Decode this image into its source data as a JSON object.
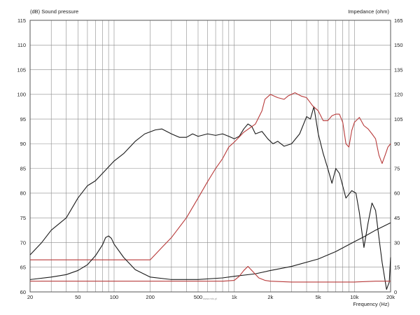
{
  "chart_data": {
    "type": "line",
    "left_axis_title": "(dB)  Sound pressure",
    "right_axis_title": "Impedance  (ohm)",
    "xlabel": "Frequency  (Hz)",
    "x_scale": "log",
    "xlim": [
      20,
      20000
    ],
    "ylim_left": [
      60,
      115
    ],
    "ylim_right": [
      0,
      165
    ],
    "grid": true,
    "watermark": "www.mis.pl",
    "x_ticks": [
      {
        "value": 20,
        "label": "20"
      },
      {
        "value": 50,
        "label": "50"
      },
      {
        "value": 100,
        "label": "100"
      },
      {
        "value": 200,
        "label": "200"
      },
      {
        "value": 500,
        "label": "500"
      },
      {
        "value": 1000,
        "label": "1k"
      },
      {
        "value": 2000,
        "label": "2k"
      },
      {
        "value": 5000,
        "label": "5k"
      },
      {
        "value": 10000,
        "label": "10k"
      },
      {
        "value": 20000,
        "label": "20k"
      }
    ],
    "y_left_ticks": [
      "60",
      "65",
      "70",
      "75",
      "80",
      "85",
      "90",
      "95",
      "100",
      "105",
      "110",
      "115"
    ],
    "y_right_ticks": [
      "0",
      "15",
      "30",
      "45",
      "60",
      "75",
      "90",
      "105",
      "120",
      "135",
      "150",
      "165"
    ],
    "series": [
      {
        "axis": "left",
        "color": "#1a1a1a",
        "points": [
          [
            20,
            67.5
          ],
          [
            25,
            70
          ],
          [
            30,
            72.5
          ],
          [
            40,
            75
          ],
          [
            50,
            79
          ],
          [
            60,
            81.5
          ],
          [
            70,
            82.5
          ],
          [
            80,
            84
          ],
          [
            100,
            86.5
          ],
          [
            120,
            88
          ],
          [
            150,
            90.5
          ],
          [
            180,
            92
          ],
          [
            220,
            92.8
          ],
          [
            250,
            93
          ],
          [
            300,
            92
          ],
          [
            350,
            91.3
          ],
          [
            400,
            91.3
          ],
          [
            450,
            92
          ],
          [
            500,
            91.5
          ],
          [
            600,
            92
          ],
          [
            700,
            91.7
          ],
          [
            800,
            92
          ],
          [
            900,
            91.5
          ],
          [
            1000,
            91
          ],
          [
            1100,
            91.5
          ],
          [
            1200,
            93
          ],
          [
            1300,
            94
          ],
          [
            1400,
            93.5
          ],
          [
            1500,
            92
          ],
          [
            1700,
            92.5
          ],
          [
            1900,
            91
          ],
          [
            2100,
            90
          ],
          [
            2300,
            90.5
          ],
          [
            2600,
            89.5
          ],
          [
            3000,
            90
          ],
          [
            3500,
            92
          ],
          [
            4000,
            95.5
          ],
          [
            4300,
            95
          ],
          [
            4600,
            97.5
          ],
          [
            5000,
            92
          ],
          [
            5500,
            88
          ],
          [
            6000,
            85
          ],
          [
            6500,
            82
          ],
          [
            7000,
            85
          ],
          [
            7500,
            84
          ],
          [
            8500,
            79
          ],
          [
            9500,
            80.5
          ],
          [
            10300,
            80
          ],
          [
            11000,
            76
          ],
          [
            12000,
            69
          ],
          [
            13000,
            74
          ],
          [
            14000,
            78
          ],
          [
            15000,
            76.5
          ],
          [
            16000,
            71
          ],
          [
            17000,
            66
          ],
          [
            18500,
            60.5
          ],
          [
            19500,
            62
          ],
          [
            20000,
            67
          ]
        ]
      },
      {
        "axis": "right",
        "color": "#b83a3a",
        "points": [
          [
            20,
            19.5
          ],
          [
            30,
            19.5
          ],
          [
            50,
            19.5
          ],
          [
            80,
            19.5
          ],
          [
            120,
            19.5
          ],
          [
            170,
            19.5
          ],
          [
            200,
            19.5
          ],
          [
            250,
            27
          ],
          [
            300,
            33
          ],
          [
            400,
            45
          ],
          [
            500,
            57
          ],
          [
            600,
            67
          ],
          [
            700,
            75
          ],
          [
            800,
            81
          ],
          [
            900,
            88
          ],
          [
            1000,
            91
          ],
          [
            1200,
            97
          ],
          [
            1500,
            102
          ],
          [
            1700,
            110
          ],
          [
            1800,
            117
          ],
          [
            2000,
            120
          ],
          [
            2300,
            118
          ],
          [
            2600,
            117
          ],
          [
            2800,
            119
          ],
          [
            3200,
            121
          ],
          [
            3600,
            119
          ],
          [
            4000,
            118
          ],
          [
            4500,
            113
          ],
          [
            5000,
            110
          ],
          [
            5500,
            104
          ],
          [
            6000,
            104
          ],
          [
            6500,
            107
          ],
          [
            7000,
            108
          ],
          [
            7500,
            108
          ],
          [
            8000,
            103
          ],
          [
            8500,
            90
          ],
          [
            9000,
            88
          ],
          [
            9500,
            98
          ],
          [
            10000,
            103
          ],
          [
            11000,
            106
          ],
          [
            12000,
            101
          ],
          [
            13000,
            99
          ],
          [
            14000,
            96
          ],
          [
            15000,
            93
          ],
          [
            16000,
            83
          ],
          [
            17000,
            78
          ],
          [
            18000,
            83
          ],
          [
            19000,
            88
          ],
          [
            20000,
            90
          ]
        ]
      },
      {
        "axis": "right",
        "color": "#1a1a1a",
        "points": [
          [
            20,
            7.5
          ],
          [
            30,
            9
          ],
          [
            40,
            10.5
          ],
          [
            50,
            13
          ],
          [
            60,
            16.5
          ],
          [
            70,
            22
          ],
          [
            80,
            28.5
          ],
          [
            85,
            33
          ],
          [
            90,
            34
          ],
          [
            95,
            32.5
          ],
          [
            100,
            29
          ],
          [
            120,
            21
          ],
          [
            150,
            13.5
          ],
          [
            200,
            9
          ],
          [
            300,
            7.5
          ],
          [
            500,
            7.5
          ],
          [
            800,
            8.5
          ],
          [
            1000,
            9.5
          ],
          [
            1500,
            11
          ],
          [
            2000,
            13
          ],
          [
            3000,
            15.5
          ],
          [
            5000,
            20
          ],
          [
            7000,
            24.5
          ],
          [
            10000,
            30.5
          ],
          [
            12000,
            33.5
          ],
          [
            15000,
            37.5
          ],
          [
            20000,
            42
          ]
        ]
      },
      {
        "axis": "right",
        "color": "#b83a3a",
        "points": [
          [
            20,
            6.5
          ],
          [
            50,
            6.5
          ],
          [
            100,
            6.5
          ],
          [
            300,
            6.5
          ],
          [
            500,
            6.5
          ],
          [
            800,
            6.5
          ],
          [
            1000,
            7
          ],
          [
            1100,
            9.5
          ],
          [
            1200,
            13
          ],
          [
            1300,
            15.5
          ],
          [
            1400,
            13
          ],
          [
            1600,
            8.5
          ],
          [
            1800,
            7
          ],
          [
            2000,
            6.5
          ],
          [
            3000,
            6
          ],
          [
            5000,
            6
          ],
          [
            10000,
            6
          ],
          [
            15000,
            6.5
          ],
          [
            20000,
            6.5
          ]
        ]
      }
    ]
  }
}
